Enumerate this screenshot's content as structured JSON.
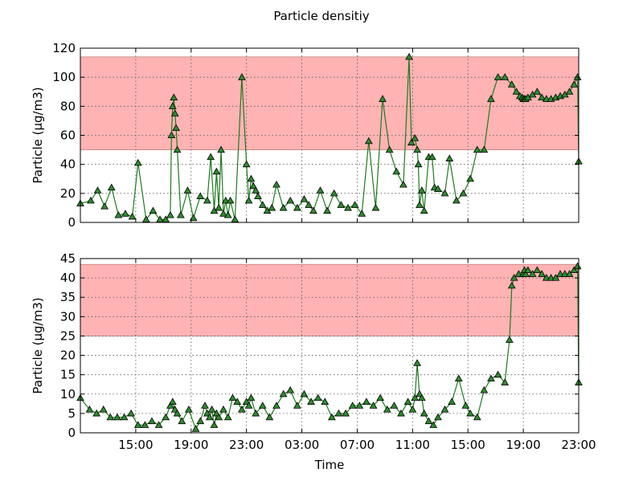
{
  "figure": {
    "title": "Particle densitiy",
    "xlabel": "Time"
  },
  "colors": {
    "band": "#ffb3b3",
    "band_edge": "#c08080",
    "line": "#1f7a1f",
    "marker": "#2e8b2e",
    "marker_edge": "#000000",
    "grid": "#555555"
  },
  "chart_data": [
    {
      "type": "line",
      "title": "Particle densitiy",
      "xlabel": "",
      "ylabel": "Particle (µg/m3)",
      "ylim": [
        0,
        120
      ],
      "yticks": [
        0,
        20,
        40,
        60,
        80,
        100,
        120
      ],
      "xlim": [
        "11:00",
        "23:00 (+1 day)"
      ],
      "xticks": [
        "15:00",
        "19:00",
        "23:00",
        "03:00",
        "07:00",
        "11:00",
        "15:00",
        "19:00",
        "23:00"
      ],
      "xtick_labels_visible": false,
      "grid": true,
      "marker": "triangle",
      "band": {
        "from": 50,
        "to": 114
      },
      "series": [
        {
          "x": [
            "11:00",
            "11:45",
            "12:15",
            "12:45",
            "13:15",
            "13:45",
            "14:15",
            "14:45",
            "15:10",
            "15:45",
            "16:15",
            "16:45",
            "17:10",
            "17:30",
            "17:35",
            "17:40",
            "17:45",
            "17:50",
            "17:55",
            "18:00",
            "18:15",
            "18:45",
            "19:10",
            "19:40",
            "20:10",
            "20:25",
            "20:40",
            "20:50",
            "21:00",
            "21:10",
            "21:20",
            "21:30",
            "21:40",
            "21:50",
            "22:10",
            "22:40",
            "23:00",
            "23:10",
            "23:20",
            "23:30",
            "23:40",
            "23:50",
            "00:10",
            "00:30",
            "00:50",
            "01:10",
            "01:40",
            "02:10",
            "02:40",
            "03:10",
            "03:30",
            "03:50",
            "04:20",
            "04:50",
            "05:20",
            "05:50",
            "06:20",
            "06:50",
            "07:20",
            "07:50",
            "08:20",
            "08:50",
            "09:20",
            "09:50",
            "10:20",
            "10:45",
            "10:55",
            "11:10",
            "11:20",
            "11:25",
            "11:30",
            "11:40",
            "11:50",
            "12:10",
            "12:25",
            "12:35",
            "12:50",
            "13:20",
            "13:40",
            "14:10",
            "14:40",
            "15:10",
            "15:40",
            "16:10",
            "16:40",
            "17:10",
            "17:40",
            "18:10",
            "18:30",
            "18:45",
            "18:55",
            "19:00",
            "19:05",
            "19:10",
            "19:20",
            "19:40",
            "20:00",
            "20:20",
            "20:40",
            "21:00",
            "21:20",
            "21:40",
            "22:00",
            "22:20",
            "22:40",
            "22:55",
            "23:00"
          ],
          "values": [
            13,
            15,
            22,
            11,
            24,
            5,
            6,
            4,
            41,
            2,
            8,
            2,
            2,
            5,
            60,
            80,
            86,
            75,
            65,
            50,
            5,
            22,
            3,
            18,
            15,
            45,
            8,
            35,
            10,
            50,
            6,
            15,
            5,
            15,
            2,
            100,
            40,
            15,
            30,
            25,
            22,
            18,
            12,
            8,
            10,
            26,
            10,
            15,
            10,
            16,
            12,
            8,
            22,
            8,
            20,
            12,
            10,
            12,
            6,
            56,
            10,
            85,
            50,
            35,
            26,
            114,
            55,
            58,
            50,
            40,
            12,
            22,
            8,
            45,
            45,
            24,
            23,
            20,
            44,
            15,
            20,
            30,
            50,
            50,
            85,
            100,
            100,
            95,
            90,
            87,
            86,
            85,
            85,
            85,
            86,
            88,
            90,
            86,
            85,
            85,
            86,
            87,
            88,
            90,
            95,
            100,
            42
          ]
        }
      ]
    },
    {
      "type": "line",
      "title": "",
      "xlabel": "Time",
      "ylabel": "Particle (µg/m3)",
      "ylim": [
        0,
        45
      ],
      "yticks": [
        0,
        5,
        10,
        15,
        20,
        25,
        30,
        35,
        40,
        45
      ],
      "xlim": [
        "11:00",
        "23:00 (+1 day)"
      ],
      "xticks": [
        "15:00",
        "19:00",
        "23:00",
        "03:00",
        "07:00",
        "11:00",
        "15:00",
        "19:00",
        "23:00"
      ],
      "xtick_labels_visible": true,
      "grid": true,
      "marker": "triangle",
      "band": {
        "from": 25,
        "to": 43.5
      },
      "series": [
        {
          "x": [
            "11:00",
            "11:40",
            "12:10",
            "12:40",
            "13:10",
            "13:40",
            "14:10",
            "14:40",
            "15:10",
            "15:40",
            "16:10",
            "16:40",
            "17:10",
            "17:30",
            "17:40",
            "17:50",
            "18:00",
            "18:20",
            "18:50",
            "19:20",
            "19:40",
            "20:00",
            "20:10",
            "20:20",
            "20:30",
            "20:40",
            "20:50",
            "21:00",
            "21:20",
            "21:40",
            "22:00",
            "22:20",
            "22:40",
            "23:00",
            "23:10",
            "23:20",
            "23:40",
            "00:10",
            "00:40",
            "01:10",
            "01:40",
            "02:10",
            "02:40",
            "03:10",
            "03:40",
            "04:10",
            "04:40",
            "05:10",
            "05:40",
            "06:10",
            "06:40",
            "07:10",
            "07:40",
            "08:10",
            "08:40",
            "09:10",
            "09:40",
            "10:10",
            "10:40",
            "11:00",
            "11:10",
            "11:20",
            "11:30",
            "11:40",
            "11:50",
            "12:10",
            "12:30",
            "12:50",
            "13:20",
            "13:50",
            "14:20",
            "14:50",
            "15:10",
            "15:40",
            "16:10",
            "16:40",
            "17:10",
            "17:40",
            "18:00",
            "18:10",
            "18:20",
            "18:40",
            "19:00",
            "19:05",
            "19:10",
            "19:20",
            "19:40",
            "20:00",
            "20:20",
            "20:40",
            "21:00",
            "21:20",
            "21:40",
            "22:00",
            "22:20",
            "22:40",
            "22:55",
            "23:00"
          ],
          "values": [
            9,
            6,
            5,
            6,
            4,
            4,
            4,
            5,
            2,
            2,
            3,
            2,
            4,
            7,
            8,
            6,
            5,
            3,
            6,
            1,
            3,
            7,
            5,
            4,
            6,
            2,
            5,
            4,
            6,
            4,
            9,
            8,
            6,
            8,
            7,
            9,
            5,
            7,
            4,
            7,
            10,
            11,
            7,
            10,
            8,
            9,
            8,
            4,
            5,
            5,
            7,
            7,
            8,
            7,
            9,
            6,
            7,
            5,
            8,
            6,
            9,
            18,
            10,
            9,
            5,
            3,
            2,
            4,
            6,
            8,
            14,
            7,
            5,
            4,
            11,
            14,
            15,
            13,
            24,
            38,
            40,
            41,
            41,
            42,
            41,
            42,
            41,
            42,
            41,
            40,
            40,
            40,
            41,
            41,
            41,
            42,
            43,
            13
          ]
        }
      ]
    }
  ]
}
